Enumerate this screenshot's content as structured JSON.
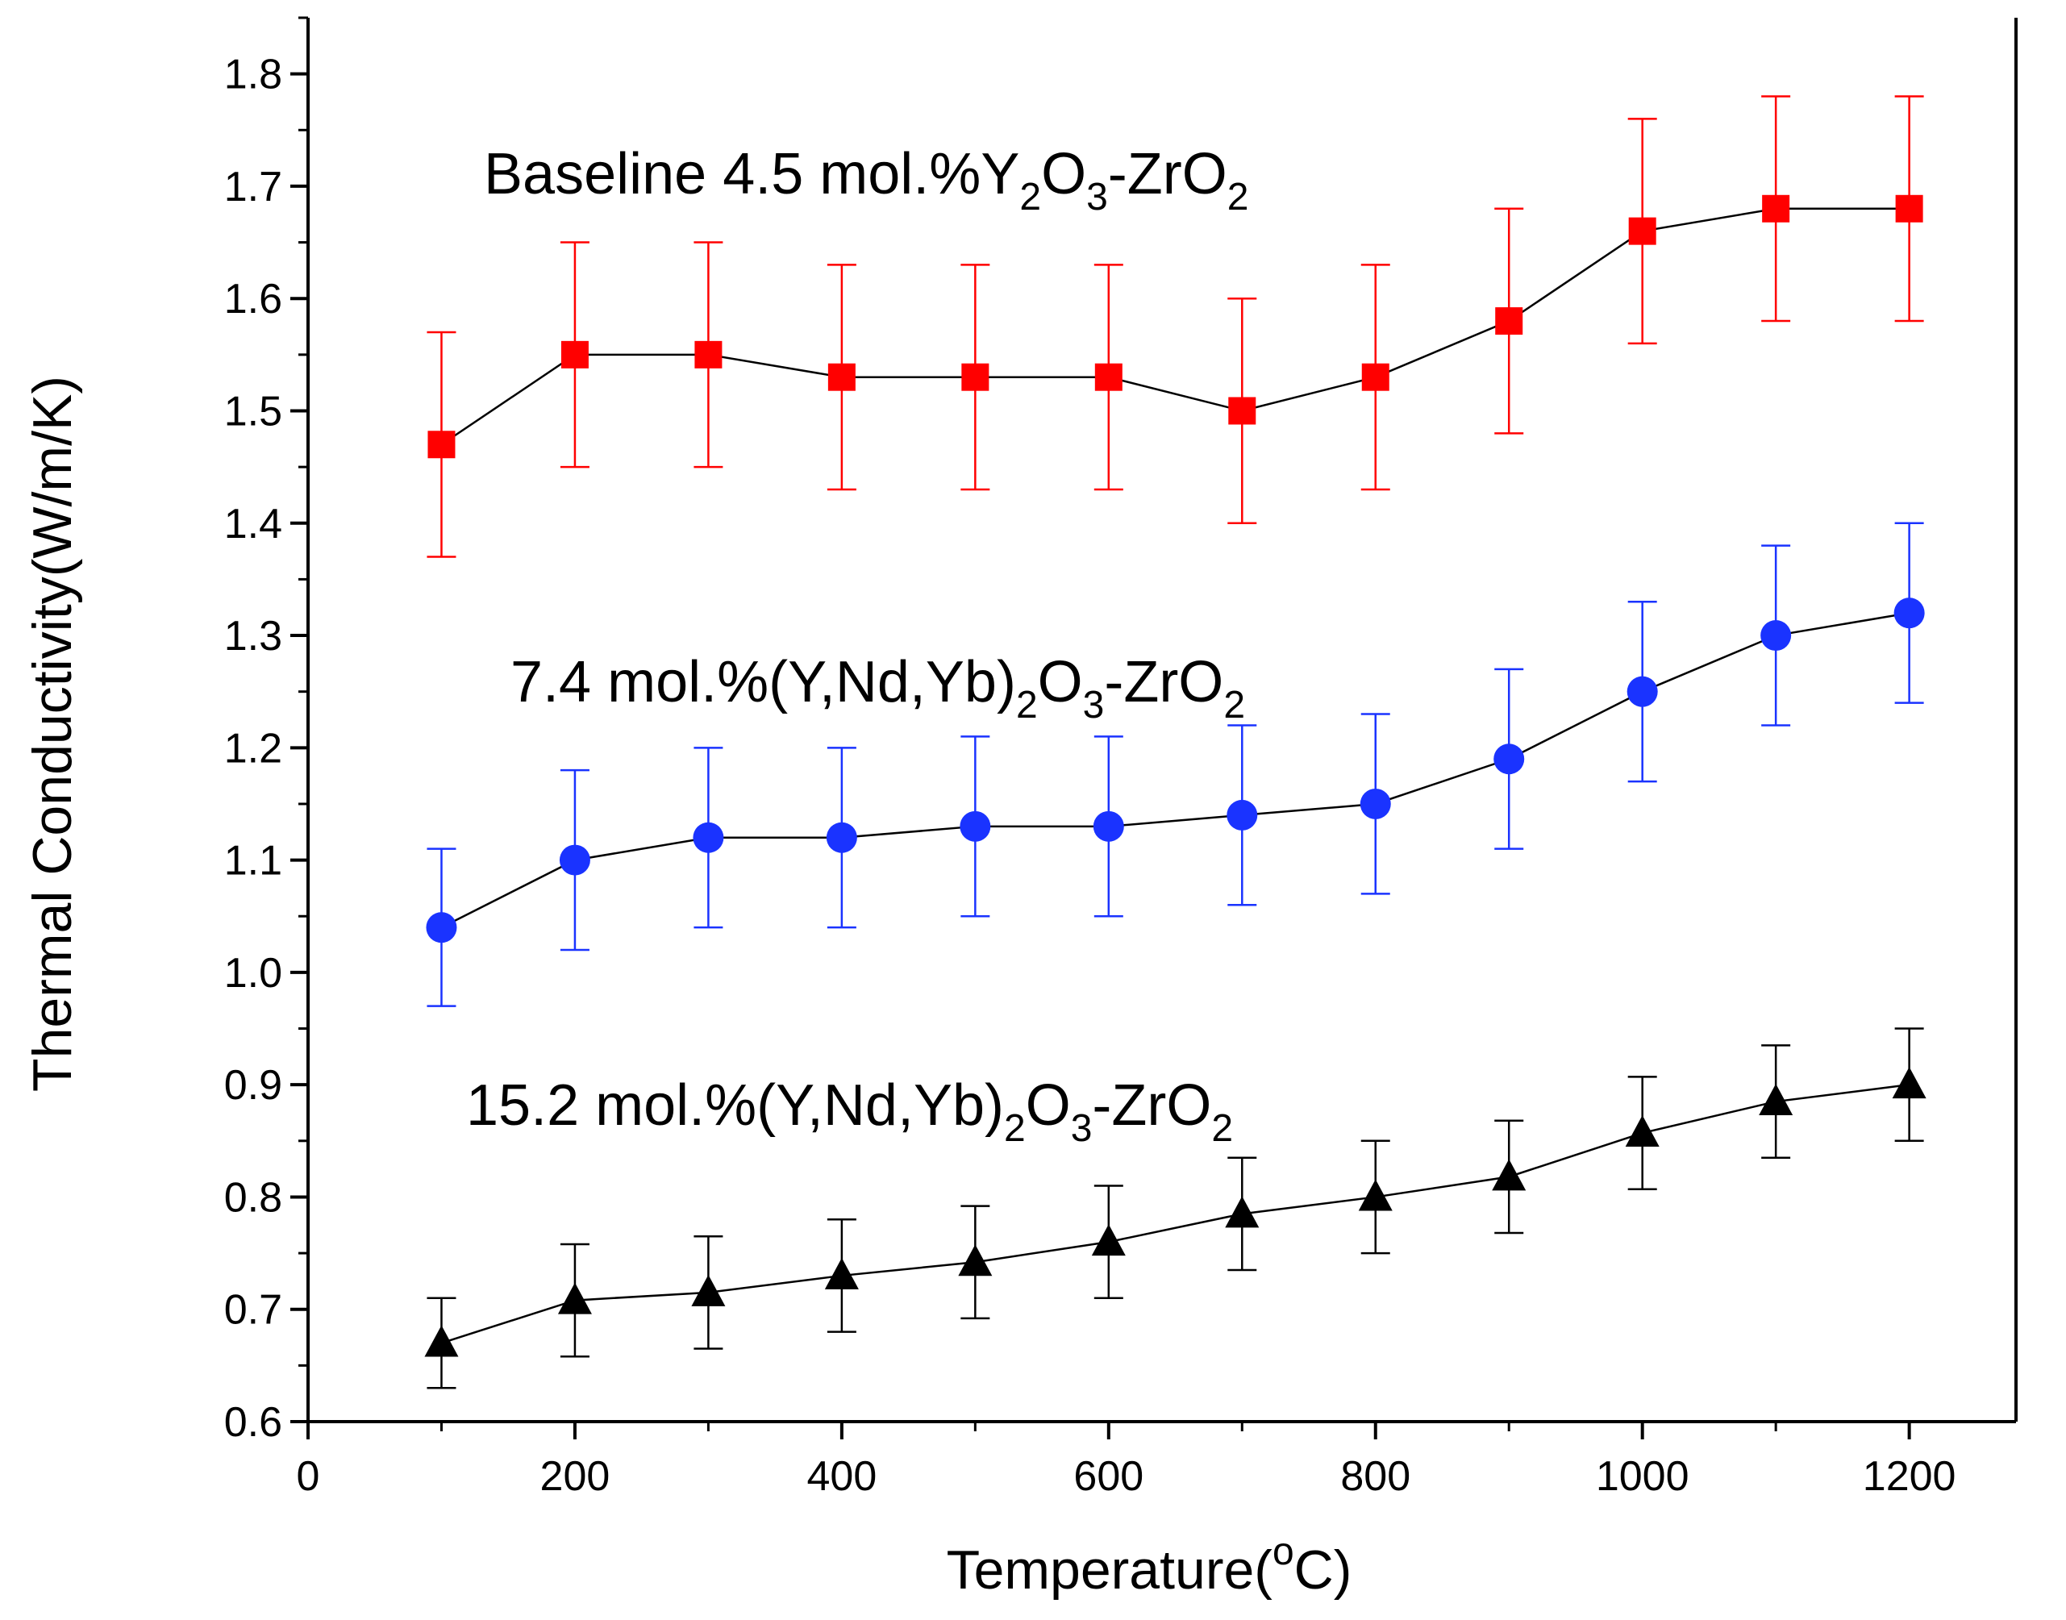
{
  "chart_data": {
    "type": "scatter",
    "title": "",
    "xlabel": "Temperature(",
    "xlabel_sup": "o",
    "xlabel_tail": "C)",
    "ylabel": "Thermal Conductivity(W/m/K)",
    "xlim": [
      0,
      1280
    ],
    "ylim": [
      0.6,
      1.85
    ],
    "x_ticks": [
      0,
      200,
      400,
      600,
      800,
      1000,
      1200
    ],
    "x_tick_labels": [
      "0",
      "200",
      "400",
      "600",
      "800",
      "1000",
      "1200"
    ],
    "y_ticks": [
      0.6,
      0.7,
      0.8,
      0.9,
      1.0,
      1.1,
      1.2,
      1.3,
      1.4,
      1.5,
      1.6,
      1.7,
      1.8
    ],
    "y_tick_labels": [
      "0.6",
      "0.7",
      "0.8",
      "0.9",
      "1.0",
      "1.1",
      "1.2",
      "1.3",
      "1.4",
      "1.5",
      "1.6",
      "1.7",
      "1.8"
    ],
    "grid": false,
    "x": [
      100,
      200,
      300,
      400,
      500,
      600,
      700,
      800,
      900,
      1000,
      1100,
      1200
    ],
    "series": [
      {
        "marker": "square",
        "color": "#ff0000",
        "line_color": "#000000",
        "values": [
          1.47,
          1.55,
          1.55,
          1.53,
          1.53,
          1.53,
          1.5,
          1.53,
          1.58,
          1.66,
          1.68,
          1.68
        ],
        "errors": [
          0.1,
          0.1,
          0.1,
          0.1,
          0.1,
          0.1,
          0.1,
          0.1,
          0.1,
          0.1,
          0.1,
          0.1
        ]
      },
      {
        "marker": "circle",
        "color": "#1a33ff",
        "line_color": "#000000",
        "values": [
          1.04,
          1.1,
          1.12,
          1.12,
          1.13,
          1.13,
          1.14,
          1.15,
          1.19,
          1.25,
          1.3,
          1.32
        ],
        "errors": [
          0.07,
          0.08,
          0.08,
          0.08,
          0.08,
          0.08,
          0.08,
          0.08,
          0.08,
          0.08,
          0.08,
          0.08
        ]
      },
      {
        "marker": "triangle",
        "color": "#000000",
        "line_color": "#000000",
        "values": [
          0.67,
          0.708,
          0.715,
          0.73,
          0.742,
          0.76,
          0.785,
          0.8,
          0.818,
          0.857,
          0.885,
          0.9
        ],
        "errors": [
          0.04,
          0.05,
          0.05,
          0.05,
          0.05,
          0.05,
          0.05,
          0.05,
          0.05,
          0.05,
          0.05,
          0.05
        ]
      }
    ],
    "annotations": [
      {
        "text": "Baseline 4.5 mol.%Y",
        "sub1": "2",
        "mid": "O",
        "sub2": "3",
        "tail": "-ZrO",
        "sub3": "2"
      },
      {
        "text": "7.4 mol.%(Y,Nd,Yb)",
        "sub1": "2",
        "mid": "O",
        "sub2": "3",
        "tail": "-ZrO",
        "sub3": "2"
      },
      {
        "text": "15.2 mol.%(Y,Nd,Yb)",
        "sub1": "2",
        "mid": "O",
        "sub2": "3",
        "tail": "-ZrO",
        "sub3": "2"
      }
    ]
  }
}
